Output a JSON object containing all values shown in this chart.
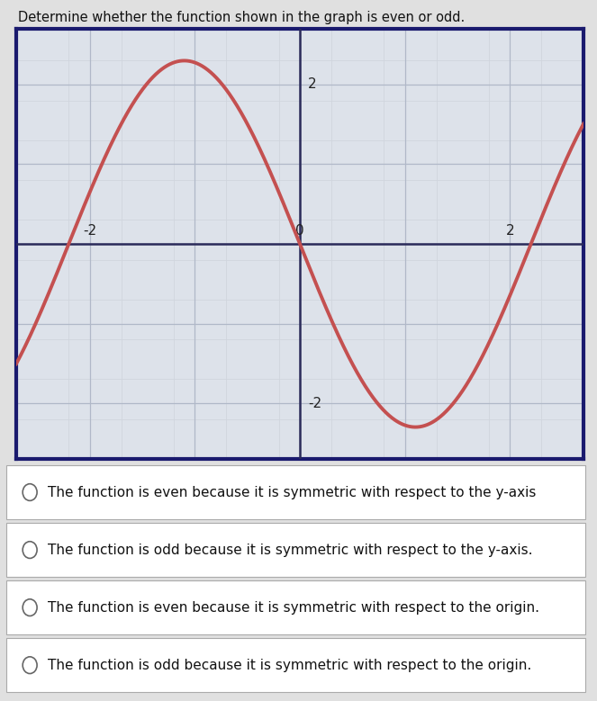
{
  "title": "Determine whether the function shown in the graph is even or odd.",
  "xlim": [
    -2.7,
    2.7
  ],
  "ylim": [
    -2.7,
    2.7
  ],
  "xticks": [
    -2,
    0,
    2
  ],
  "yticks": [
    -2,
    2
  ],
  "curve_color": "#c45050",
  "curve_linewidth": 2.8,
  "grid_color_major": "#b0b8c8",
  "grid_color_minor": "#d0d5de",
  "axis_color": "#2a2a5a",
  "plot_bg_color_top": "#e8eaee",
  "plot_bg_color": "#dde2ea",
  "border_color": "#1a1a6e",
  "border_linewidth": 3.0,
  "bg_color": "#e0e0e0",
  "choices": [
    "The function is even because it is symmetric with respect to the y-axis",
    "The function is odd because it is symmetric with respect to the y-axis.",
    "The function is even because it is symmetric with respect to the origin.",
    "The function is odd because it is symmetric with respect to the origin."
  ],
  "choice_fontsize": 11,
  "title_fontsize": 10.5,
  "curve_amplitude": 2.3,
  "curve_period_factor": 2.2
}
